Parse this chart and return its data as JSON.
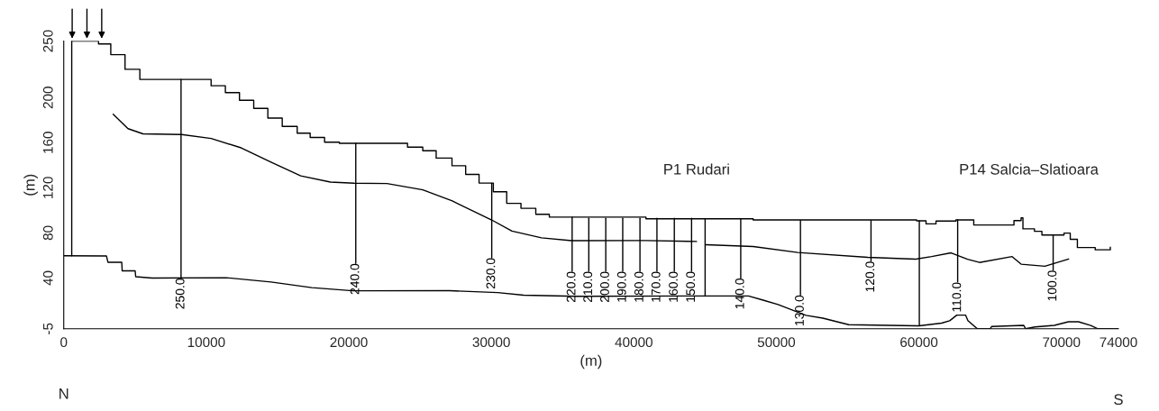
{
  "chart_data": {
    "type": "line",
    "xlabel": "(m)",
    "ylabel": "(m)",
    "xlim": [
      0,
      74000
    ],
    "xticks": [
      0,
      10000,
      20000,
      30000,
      40000,
      50000,
      60000,
      70000,
      74000
    ],
    "ylim": [
      -5,
      250
    ],
    "yticks": [
      -5,
      40,
      80,
      120,
      160,
      200,
      250
    ],
    "grid": false,
    "legend": false,
    "annotations": [
      "P1 Rudari",
      "P14 Salcia–Slatioara",
      "N",
      "S"
    ],
    "series": [
      {
        "type": "step",
        "color": "#000000",
        "x": [
          560,
          2440,
          3300,
          4300,
          5340,
          10340,
          11340,
          12330,
          13330,
          14320,
          15330,
          16380,
          17290,
          18300,
          19340,
          24120,
          25190,
          26130,
          27240,
          28200,
          29140,
          30140,
          31080,
          32080,
          33120,
          34070,
          40850,
          48370,
          59840,
          60500,
          61200,
          62600,
          63850,
          66670,
          67170,
          67300,
          68110,
          68630,
          70180,
          70620,
          71120,
          72370,
          73430
        ],
        "values": [
          250,
          247.5,
          238,
          225,
          216,
          210.4,
          204.3,
          197.6,
          190.4,
          181.8,
          174.4,
          168.4,
          164.6,
          160.4,
          159.4,
          156,
          152.8,
          146.3,
          139.5,
          131.9,
          124.2,
          116.5,
          106.2,
          101.8,
          96.5,
          94,
          92.5,
          91.5,
          90.7,
          88,
          90.5,
          91.5,
          87,
          90.9,
          93.3,
          83.6,
          81.4,
          78.1,
          79.8,
          74.3,
          67,
          65,
          67.4
        ]
      },
      {
        "color": "#000000",
        "x": [
          0,
          3000,
          3100,
          4070,
          4100,
          5010,
          5050,
          6200,
          11400,
          14540,
          17410,
          20280,
          27070,
          30450,
          32270,
          36030,
          45030,
          48040,
          49070,
          50120,
          52080,
          53260,
          55080,
          60020,
          61590,
          62160,
          62660,
          63280,
          63440,
          64100,
          65000,
          65100,
          67360,
          67490,
          68140,
          69500,
          70490,
          71200,
          72060,
          72560,
          74000
        ],
        "values": [
          59.8,
          59.5,
          54,
          54,
          46.4,
          46.4,
          41.2,
          40,
          40.3,
          36.5,
          31.5,
          28.7,
          28.8,
          27.1,
          24.8,
          23.8,
          24.1,
          24.1,
          20.4,
          16.5,
          6.9,
          4.4,
          -1.4,
          -2.4,
          0,
          2.1,
          7.1,
          7.1,
          2.3,
          -5,
          -5,
          -3,
          -2,
          -5,
          -3.4,
          -2,
          1.2,
          1.2,
          -2,
          -5,
          -5
        ]
      },
      {
        "color": "#000000",
        "x": [
          3470,
          4510,
          5560,
          8270,
          10340,
          12450,
          14540,
          16630,
          18710,
          20370,
          22680,
          25190,
          27260,
          29990,
          31450,
          33520,
          35630,
          40850,
          44400
        ],
        "values": [
          185.2,
          172.4,
          167.8,
          167.2,
          163.7,
          155.4,
          142.7,
          130.6,
          125.1,
          124.1,
          123.8,
          118.2,
          108.3,
          91.7,
          81.6,
          75.6,
          73.1,
          73.2,
          72.4
        ]
      },
      {
        "color": "#000000",
        "x": [
          45030,
          48370,
          51500,
          56410,
          59750,
          60900,
          62260,
          63410,
          64250,
          66540,
          67170,
          68840,
          70510
        ],
        "values": [
          69.5,
          67.9,
          62.6,
          58.3,
          56.7,
          59,
          62.3,
          56.6,
          53.8,
          59,
          52.3,
          50.5,
          56.8
        ]
      },
      {
        "color": "#000000",
        "x": [
          560,
          560
        ],
        "values": [
          59.8,
          250
        ]
      },
      {
        "color": "#000000",
        "name": "250.0",
        "x": [
          8230,
          8230
        ],
        "values": [
          40,
          216
        ]
      },
      {
        "color": "#000000",
        "name": "240.0",
        "x": [
          20490,
          20490
        ],
        "values": [
          53,
          159.4
        ]
      },
      {
        "color": "#000000",
        "name": "230.0",
        "x": [
          30030,
          30030
        ],
        "values": [
          58,
          124
        ]
      },
      {
        "color": "#000000",
        "name": "220.0",
        "x": [
          35670,
          35670
        ],
        "values": [
          46,
          94
        ]
      },
      {
        "color": "#000000",
        "name": "210.0",
        "x": [
          36840,
          36840
        ],
        "values": [
          46,
          93
        ]
      },
      {
        "color": "#000000",
        "name": "200.0",
        "x": [
          38030,
          38030
        ],
        "values": [
          46,
          93
        ]
      },
      {
        "color": "#000000",
        "name": "190.0",
        "x": [
          39220,
          39220
        ],
        "values": [
          46,
          93
        ]
      },
      {
        "color": "#000000",
        "name": "180.0",
        "x": [
          40430,
          40430
        ],
        "values": [
          46,
          93
        ]
      },
      {
        "color": "#000000",
        "name": "170.0",
        "x": [
          41620,
          41620
        ],
        "values": [
          46,
          93
        ]
      },
      {
        "color": "#000000",
        "name": "160.0",
        "x": [
          42840,
          42840
        ],
        "values": [
          46,
          93
        ]
      },
      {
        "color": "#000000",
        "name": "150.0",
        "x": [
          44050,
          44050
        ],
        "values": [
          46,
          93
        ]
      },
      {
        "color": "#000000",
        "x": [
          45000,
          45000
        ],
        "values": [
          24,
          92.4
        ]
      },
      {
        "color": "#000000",
        "name": "140.0",
        "x": [
          47500,
          47500
        ],
        "values": [
          40,
          92
        ]
      },
      {
        "color": "#000000",
        "name": "130.0",
        "x": [
          51690,
          51690
        ],
        "values": [
          25,
          91
        ]
      },
      {
        "color": "#000000",
        "name": "120.0",
        "x": [
          56640,
          56640
        ],
        "values": [
          55,
          91
        ]
      },
      {
        "color": "#000000",
        "x": [
          60030,
          60030
        ],
        "values": [
          -2,
          90.7
        ]
      },
      {
        "color": "#000000",
        "name": "110.0",
        "x": [
          62720,
          62720
        ],
        "values": [
          36.5,
          91.5
        ]
      },
      {
        "color": "#000000",
        "name": "100.0",
        "x": [
          69420,
          69420
        ],
        "values": [
          47,
          78
        ]
      }
    ]
  }
}
